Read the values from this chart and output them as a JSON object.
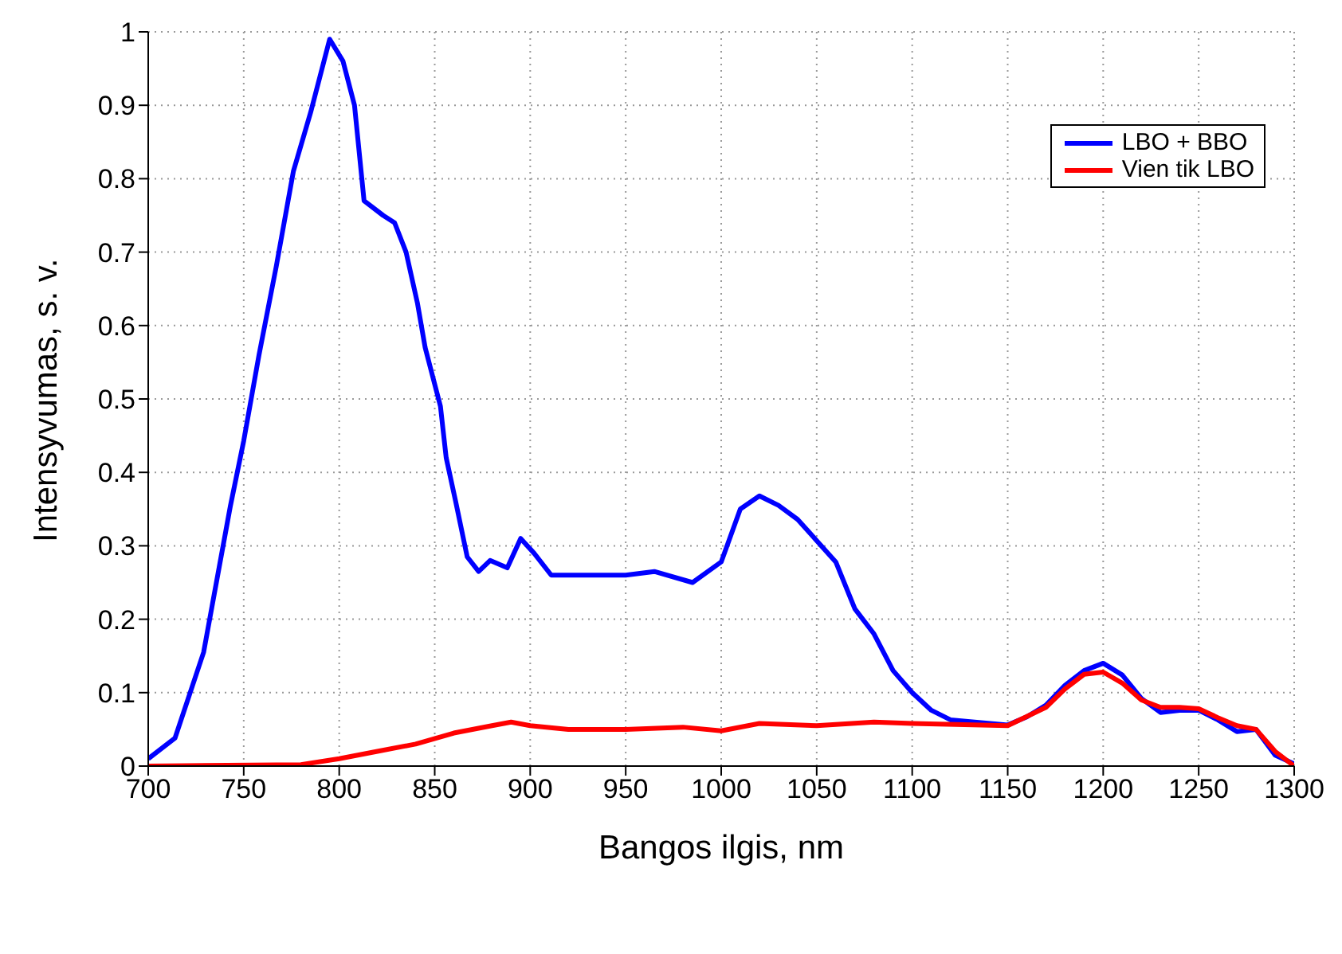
{
  "chart_data": {
    "type": "line",
    "xlabel": "Bangos ilgis, nm",
    "ylabel": "Intensyvumas, s. v.",
    "xlim": [
      700,
      1300
    ],
    "ylim": [
      0,
      1
    ],
    "xticks": [
      700,
      750,
      800,
      850,
      900,
      950,
      1000,
      1050,
      1100,
      1150,
      1200,
      1250,
      1300
    ],
    "yticks": [
      0,
      0.1,
      0.2,
      0.3,
      0.4,
      0.5,
      0.6,
      0.7,
      0.8,
      0.9,
      1
    ],
    "grid": true,
    "legend": "top right",
    "marker": "none",
    "line_style": "solid",
    "series": [
      {
        "name": "LBO + BBO",
        "color": "#0000ff",
        "x": [
          700,
          714,
          729,
          743,
          750,
          758,
          767,
          776,
          785,
          795,
          802,
          808,
          813,
          823,
          829,
          835,
          841,
          845,
          853,
          856,
          861,
          867,
          873,
          879,
          888,
          895,
          902,
          911,
          920,
          950,
          965,
          985,
          1000,
          1010,
          1020,
          1030,
          1040,
          1050,
          1060,
          1070,
          1080,
          1090,
          1100,
          1110,
          1120,
          1150,
          1160,
          1170,
          1180,
          1190,
          1200,
          1210,
          1220,
          1230,
          1240,
          1250,
          1260,
          1270,
          1280,
          1290,
          1300
        ],
        "values": [
          0.01,
          0.038,
          0.155,
          0.354,
          0.443,
          0.56,
          0.68,
          0.81,
          0.89,
          0.99,
          0.96,
          0.9,
          0.77,
          0.75,
          0.74,
          0.7,
          0.63,
          0.57,
          0.49,
          0.42,
          0.36,
          0.285,
          0.265,
          0.28,
          0.27,
          0.31,
          0.29,
          0.26,
          0.26,
          0.26,
          0.265,
          0.25,
          0.278,
          0.35,
          0.368,
          0.355,
          0.336,
          0.307,
          0.278,
          0.214,
          0.18,
          0.13,
          0.1,
          0.076,
          0.063,
          0.056,
          0.067,
          0.083,
          0.11,
          0.13,
          0.14,
          0.124,
          0.092,
          0.073,
          0.076,
          0.076,
          0.063,
          0.047,
          0.05,
          0.015,
          0.003
        ]
      },
      {
        "name": "Vien tik LBO",
        "color": "#ff0000",
        "x": [
          700,
          780,
          800,
          820,
          840,
          860,
          880,
          890,
          900,
          920,
          950,
          980,
          1000,
          1020,
          1050,
          1080,
          1100,
          1150,
          1170,
          1180,
          1190,
          1200,
          1210,
          1220,
          1230,
          1240,
          1250,
          1260,
          1270,
          1280,
          1290,
          1300
        ],
        "values": [
          0,
          0.002,
          0.01,
          0.02,
          0.03,
          0.045,
          0.055,
          0.06,
          0.055,
          0.05,
          0.05,
          0.053,
          0.048,
          0.058,
          0.055,
          0.06,
          0.058,
          0.055,
          0.08,
          0.105,
          0.125,
          0.128,
          0.113,
          0.09,
          0.08,
          0.08,
          0.078,
          0.066,
          0.055,
          0.05,
          0.02,
          0
        ]
      }
    ]
  }
}
